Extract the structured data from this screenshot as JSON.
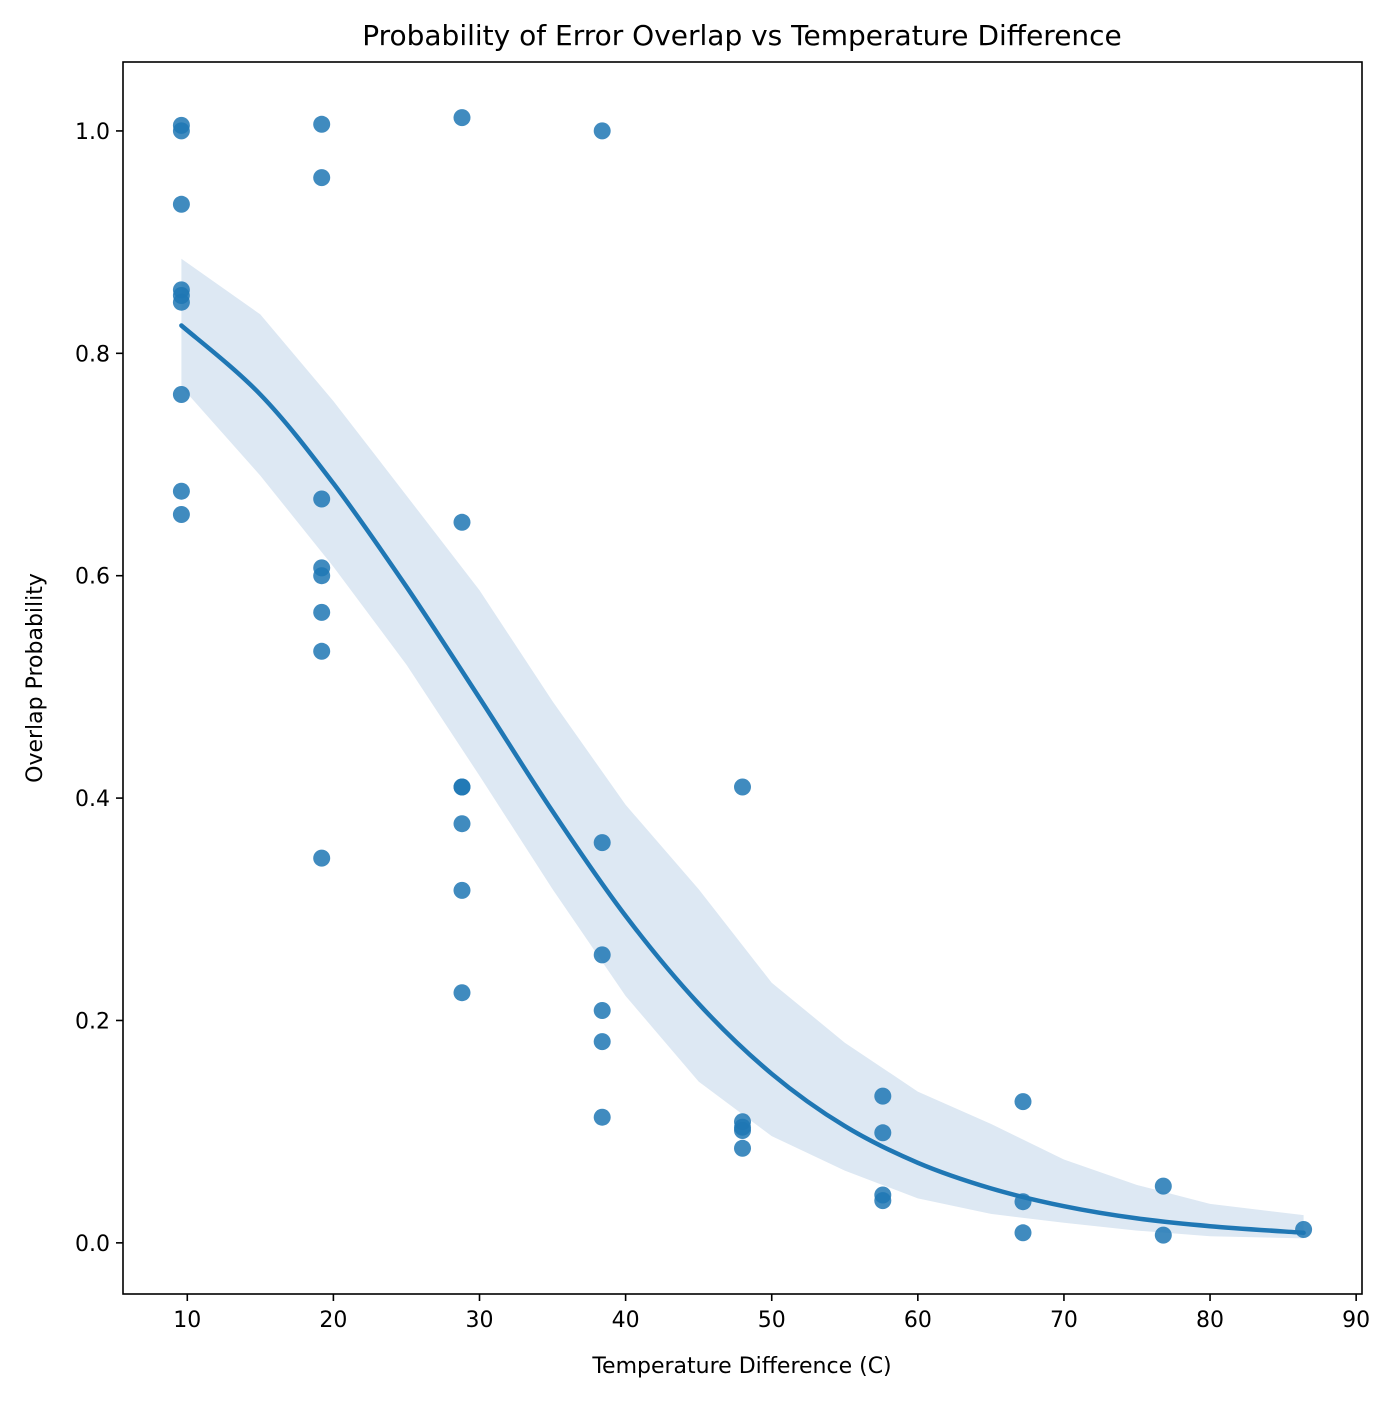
{
  "chart_data": {
    "type": "scatter",
    "title": "Probability of Error Overlap vs Temperature Difference",
    "xlabel": "Temperature Difference (C)",
    "ylabel": "Overlap Probability",
    "xlim": [
      5.6,
      90.4
    ],
    "ylim": [
      -0.046,
      1.062
    ],
    "x_ticks": [
      10,
      20,
      30,
      40,
      50,
      60,
      70,
      80,
      90
    ],
    "x_tick_labels": [
      "10",
      "20",
      "30",
      "40",
      "50",
      "60",
      "70",
      "80",
      "90"
    ],
    "y_ticks": [
      0.0,
      0.2,
      0.4,
      0.6,
      0.8,
      1.0
    ],
    "y_tick_labels": [
      "0.0",
      "0.2",
      "0.4",
      "0.6",
      "0.8",
      "1.0"
    ],
    "grid": false,
    "colors": {
      "points": "#1f77b4",
      "line": "#1f77b4",
      "band": "#dde8f3"
    },
    "points": [
      {
        "x": 9.6,
        "y": 1.005
      },
      {
        "x": 9.6,
        "y": 1.0
      },
      {
        "x": 9.6,
        "y": 0.934
      },
      {
        "x": 9.6,
        "y": 0.857
      },
      {
        "x": 9.6,
        "y": 0.852
      },
      {
        "x": 9.6,
        "y": 0.846
      },
      {
        "x": 9.6,
        "y": 0.763
      },
      {
        "x": 9.6,
        "y": 0.676
      },
      {
        "x": 9.6,
        "y": 0.655
      },
      {
        "x": 19.2,
        "y": 1.006
      },
      {
        "x": 19.2,
        "y": 0.958
      },
      {
        "x": 19.2,
        "y": 0.669
      },
      {
        "x": 19.2,
        "y": 0.607
      },
      {
        "x": 19.2,
        "y": 0.6
      },
      {
        "x": 19.2,
        "y": 0.567
      },
      {
        "x": 19.2,
        "y": 0.532
      },
      {
        "x": 19.2,
        "y": 0.346
      },
      {
        "x": 28.8,
        "y": 1.012
      },
      {
        "x": 28.8,
        "y": 0.648
      },
      {
        "x": 28.8,
        "y": 0.41
      },
      {
        "x": 28.8,
        "y": 0.41
      },
      {
        "x": 28.8,
        "y": 0.377
      },
      {
        "x": 28.8,
        "y": 0.317
      },
      {
        "x": 28.8,
        "y": 0.225
      },
      {
        "x": 38.4,
        "y": 1.0
      },
      {
        "x": 38.4,
        "y": 0.36
      },
      {
        "x": 38.4,
        "y": 0.259
      },
      {
        "x": 38.4,
        "y": 0.209
      },
      {
        "x": 38.4,
        "y": 0.181
      },
      {
        "x": 38.4,
        "y": 0.113
      },
      {
        "x": 48.0,
        "y": 0.41
      },
      {
        "x": 48.0,
        "y": 0.109
      },
      {
        "x": 48.0,
        "y": 0.104
      },
      {
        "x": 48.0,
        "y": 0.101
      },
      {
        "x": 48.0,
        "y": 0.085
      },
      {
        "x": 57.6,
        "y": 0.132
      },
      {
        "x": 57.6,
        "y": 0.099
      },
      {
        "x": 57.6,
        "y": 0.043
      },
      {
        "x": 57.6,
        "y": 0.038
      },
      {
        "x": 67.2,
        "y": 0.127
      },
      {
        "x": 67.2,
        "y": 0.037
      },
      {
        "x": 67.2,
        "y": 0.009
      },
      {
        "x": 76.8,
        "y": 0.051
      },
      {
        "x": 76.8,
        "y": 0.007
      },
      {
        "x": 86.4,
        "y": 0.012
      }
    ],
    "fit": {
      "x": [
        9.6,
        15,
        20,
        25,
        30,
        35,
        40,
        45,
        50,
        55,
        60,
        65,
        70,
        75,
        80,
        86.4
      ],
      "y": [
        0.825,
        0.763,
        0.683,
        0.59,
        0.49,
        0.388,
        0.294,
        0.215,
        0.152,
        0.105,
        0.072,
        0.049,
        0.033,
        0.022,
        0.015,
        0.009
      ],
      "ci_upper": [
        0.885,
        0.835,
        0.757,
        0.672,
        0.587,
        0.487,
        0.394,
        0.318,
        0.234,
        0.18,
        0.136,
        0.107,
        0.075,
        0.052,
        0.035,
        0.025
      ],
      "ci_lower": [
        0.77,
        0.69,
        0.608,
        0.52,
        0.42,
        0.318,
        0.222,
        0.145,
        0.096,
        0.065,
        0.04,
        0.026,
        0.018,
        0.011,
        0.006,
        0.004
      ]
    }
  }
}
